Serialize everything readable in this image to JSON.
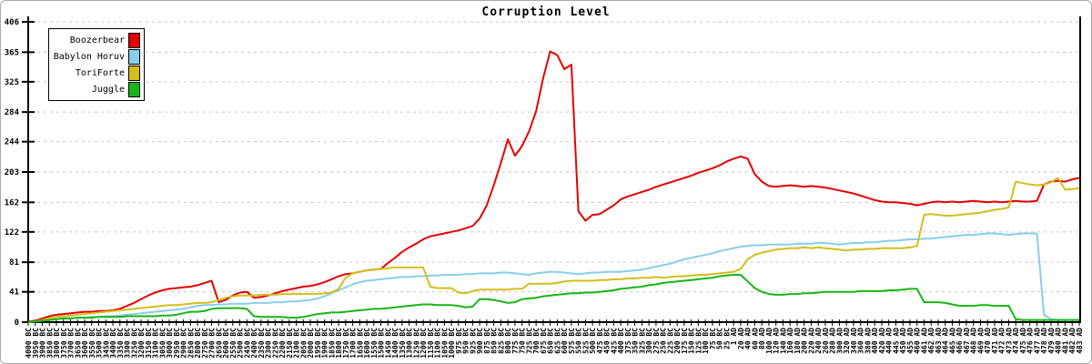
{
  "chart_data": {
    "type": "line",
    "title": "Corruption Level",
    "grid": "horizontal-dashed",
    "legend": {
      "position": "top-left"
    },
    "y_axis": {
      "range": [
        0,
        406
      ],
      "ticks": [
        0,
        41,
        81,
        122,
        162,
        203,
        244,
        284,
        325,
        365,
        406
      ]
    },
    "x_axis": {
      "tick_labels": [
        "4000 BC",
        "3950 BC",
        "3900 BC",
        "3850 BC",
        "3800 BC",
        "3750 BC",
        "3700 BC",
        "3650 BC",
        "3600 BC",
        "3550 BC",
        "3500 BC",
        "3450 BC",
        "3400 BC",
        "3350 BC",
        "3300 BC",
        "3250 BC",
        "3200 BC",
        "3150 BC",
        "3100 BC",
        "3050 BC",
        "3000 BC",
        "2950 BC",
        "2900 BC",
        "2850 BC",
        "2800 BC",
        "2750 BC",
        "2700 BC",
        "2650 BC",
        "2600 BC",
        "2550 BC",
        "2500 BC",
        "2450 BC",
        "2400 BC",
        "2350 BC",
        "2300 BC",
        "2250 BC",
        "2200 BC",
        "2150 BC",
        "2100 BC",
        "2050 BC",
        "2000 BC",
        "1950 BC",
        "1900 BC",
        "1850 BC",
        "1800 BC",
        "1750 BC",
        "1700 BC",
        "1650 BC",
        "1600 BC",
        "1550 BC",
        "1500 BC",
        "1450 BC",
        "1400 BC",
        "1350 BC",
        "1300 BC",
        "1250 BC",
        "1200 BC",
        "1150 BC",
        "1100 BC",
        "1050 BC",
        "1000 BC",
        "975 BC",
        "950 BC",
        "925 BC",
        "900 BC",
        "875 BC",
        "850 BC",
        "825 BC",
        "800 BC",
        "775 BC",
        "750 BC",
        "725 BC",
        "700 BC",
        "675 BC",
        "650 BC",
        "625 BC",
        "600 BC",
        "575 BC",
        "550 BC",
        "525 BC",
        "500 BC",
        "475 BC",
        "450 BC",
        "425 BC",
        "400 BC",
        "375 BC",
        "350 BC",
        "325 BC",
        "300 BC",
        "275 BC",
        "250 BC",
        "225 BC",
        "200 BC",
        "175 BC",
        "150 BC",
        "125 BC",
        "100 BC",
        "75 BC",
        "50 BC",
        "25 BC",
        "1 AD",
        "20 AD",
        "40 AD",
        "60 AD",
        "80 AD",
        "100 AD",
        "120 AD",
        "140 AD",
        "160 AD",
        "180 AD",
        "200 AD",
        "220 AD",
        "240 AD",
        "260 AD",
        "280 AD",
        "300 AD",
        "320 AD",
        "340 AD",
        "360 AD",
        "380 AD",
        "400 AD",
        "420 AD",
        "440 AD",
        "445 AD",
        "450 AD",
        "455 AD",
        "460 AD",
        "461 AD",
        "462 AD",
        "463 AD",
        "464 AD",
        "465 AD",
        "466 AD",
        "467 AD",
        "468 AD",
        "469 AD",
        "470 AD",
        "471 AD",
        "472 AD",
        "473 AD",
        "474 AD",
        "475 AD",
        "476 AD",
        "477 AD",
        "478 AD",
        "479 AD",
        "480 AD",
        "481 AD",
        "482 AD",
        "483 AD"
      ]
    },
    "series": [
      {
        "name": "Boozerbear",
        "color": "#e60000",
        "values": [
          1,
          2,
          5,
          8,
          10,
          11,
          12,
          13,
          14,
          14,
          15,
          15,
          16,
          18,
          22,
          26,
          31,
          36,
          40,
          43,
          45,
          46,
          47,
          48,
          50,
          53,
          56,
          27,
          30,
          36,
          40,
          41,
          33,
          34,
          36,
          39,
          42,
          44,
          46,
          48,
          49,
          51,
          54,
          58,
          62,
          65,
          66,
          68,
          70,
          71,
          72,
          80,
          87,
          95,
          101,
          106,
          112,
          116,
          118,
          120,
          122,
          124,
          127,
          130,
          140,
          158,
          185,
          215,
          247,
          225,
          238,
          258,
          285,
          330,
          366,
          361,
          342,
          348,
          150,
          137,
          145,
          146,
          152,
          158,
          166,
          170,
          173,
          176,
          179,
          183,
          186,
          189,
          192,
          195,
          198,
          202,
          205,
          208,
          212,
          217,
          221,
          224,
          221,
          200,
          190,
          184,
          183,
          184,
          185,
          184,
          183,
          184,
          183,
          182,
          180,
          178,
          176,
          174,
          171,
          168,
          165,
          163,
          162,
          162,
          161,
          160,
          158,
          160,
          162,
          163,
          162,
          163,
          162,
          163,
          164,
          163,
          162,
          163,
          162,
          163,
          164,
          163,
          163,
          164,
          186,
          190,
          191,
          190,
          193,
          195
        ]
      },
      {
        "name": "Babylon Horuv",
        "color": "#87ceeb",
        "values": [
          0,
          1,
          2,
          3,
          4,
          5,
          5,
          6,
          6,
          7,
          7,
          8,
          8,
          9,
          10,
          11,
          12,
          13,
          14,
          15,
          16,
          17,
          18,
          20,
          22,
          23,
          23,
          24,
          24,
          25,
          25,
          25,
          26,
          26,
          26,
          27,
          27,
          28,
          28,
          29,
          30,
          32,
          35,
          39,
          43,
          47,
          51,
          54,
          56,
          57,
          58,
          59,
          60,
          61,
          61,
          62,
          62,
          63,
          63,
          64,
          64,
          64,
          65,
          65,
          66,
          66,
          66,
          67,
          67,
          66,
          65,
          64,
          66,
          67,
          68,
          68,
          67,
          66,
          65,
          66,
          67,
          67,
          68,
          68,
          68,
          69,
          70,
          71,
          73,
          75,
          77,
          79,
          82,
          85,
          87,
          89,
          91,
          93,
          96,
          98,
          100,
          102,
          103,
          104,
          104,
          105,
          105,
          105,
          105,
          106,
          106,
          106,
          107,
          107,
          106,
          105,
          106,
          107,
          107,
          108,
          108,
          109,
          110,
          110,
          111,
          112,
          112,
          113,
          113,
          114,
          115,
          116,
          117,
          118,
          118,
          119,
          120,
          120,
          119,
          118,
          119,
          120,
          120,
          120,
          10,
          4,
          3,
          3,
          3,
          3
        ]
      },
      {
        "name": "ToriForte",
        "color": "#d2bf1c",
        "values": [
          0,
          1,
          3,
          5,
          7,
          8,
          9,
          10,
          11,
          12,
          13,
          14,
          15,
          16,
          17,
          18,
          19,
          20,
          21,
          22,
          23,
          23,
          24,
          25,
          26,
          26,
          27,
          30,
          33,
          35,
          36,
          36,
          36,
          37,
          37,
          37,
          38,
          38,
          38,
          38,
          38,
          38,
          39,
          40,
          45,
          60,
          66,
          68,
          70,
          71,
          72,
          73,
          74,
          74,
          74,
          74,
          74,
          48,
          46,
          46,
          46,
          40,
          39,
          42,
          44,
          44,
          44,
          44,
          44,
          45,
          45,
          52,
          52,
          52,
          52,
          53,
          55,
          56,
          56,
          56,
          56,
          57,
          57,
          58,
          58,
          59,
          59,
          60,
          60,
          61,
          60,
          61,
          62,
          62,
          63,
          64,
          64,
          65,
          66,
          67,
          68,
          72,
          85,
          91,
          94,
          96,
          98,
          99,
          100,
          100,
          101,
          100,
          101,
          100,
          99,
          98,
          97,
          98,
          98,
          99,
          99,
          100,
          100,
          100,
          100,
          101,
          103,
          145,
          146,
          145,
          144,
          144,
          145,
          146,
          147,
          148,
          150,
          152,
          153,
          155,
          190,
          188,
          186,
          185,
          186,
          189,
          195,
          179,
          180,
          181
        ]
      },
      {
        "name": "Juggle",
        "color": "#16b616",
        "values": [
          0,
          1,
          2,
          3,
          4,
          5,
          5,
          6,
          6,
          6,
          7,
          7,
          7,
          7,
          8,
          8,
          8,
          8,
          8,
          9,
          9,
          10,
          12,
          14,
          14,
          15,
          18,
          19,
          19,
          19,
          19,
          18,
          8,
          7,
          7,
          7,
          7,
          6,
          6,
          7,
          9,
          11,
          12,
          13,
          13,
          14,
          15,
          16,
          17,
          18,
          18,
          19,
          20,
          21,
          22,
          23,
          24,
          24,
          23,
          23,
          23,
          22,
          20,
          21,
          31,
          31,
          30,
          28,
          26,
          27,
          31,
          32,
          33,
          35,
          36,
          37,
          38,
          39,
          39,
          40,
          40,
          41,
          42,
          43,
          45,
          46,
          47,
          48,
          50,
          51,
          53,
          54,
          55,
          56,
          57,
          58,
          59,
          60,
          62,
          63,
          64,
          64,
          55,
          46,
          41,
          38,
          37,
          37,
          38,
          38,
          39,
          39,
          40,
          41,
          41,
          41,
          41,
          41,
          42,
          42,
          42,
          42,
          43,
          43,
          44,
          45,
          45,
          27,
          27,
          27,
          26,
          24,
          22,
          22,
          22,
          23,
          23,
          22,
          22,
          22,
          4,
          3,
          3,
          3,
          3,
          3,
          3,
          3,
          3,
          3
        ]
      }
    ]
  }
}
